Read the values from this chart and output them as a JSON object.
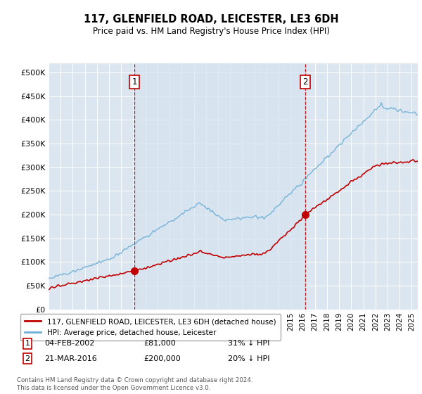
{
  "title": "117, GLENFIELD ROAD, LEICESTER, LE3 6DH",
  "subtitle": "Price paid vs. HM Land Registry's House Price Index (HPI)",
  "xlim_start": 1995.0,
  "xlim_end": 2025.5,
  "ylim": [
    0,
    520000
  ],
  "yticks": [
    0,
    50000,
    100000,
    150000,
    200000,
    250000,
    300000,
    350000,
    400000,
    450000,
    500000
  ],
  "ytick_labels": [
    "£0",
    "£50K",
    "£100K",
    "£150K",
    "£200K",
    "£250K",
    "£300K",
    "£350K",
    "£400K",
    "£450K",
    "£500K"
  ],
  "transaction1_x": 2002.09,
  "transaction1_y": 81000,
  "transaction2_x": 2016.22,
  "transaction2_y": 200000,
  "vline1_x": 2002.09,
  "vline2_x": 2016.22,
  "hpi_color": "#6baed6",
  "price_color": "#c00000",
  "shade_color": "#d6e4f0",
  "legend_label1": "117, GLENFIELD ROAD, LEICESTER, LE3 6DH (detached house)",
  "legend_label2": "HPI: Average price, detached house, Leicester",
  "table_row1": [
    "1",
    "04-FEB-2002",
    "£81,000",
    "31% ↓ HPI"
  ],
  "table_row2": [
    "2",
    "21-MAR-2016",
    "£200,000",
    "20% ↓ HPI"
  ],
  "footnote": "Contains HM Land Registry data © Crown copyright and database right 2024.\nThis data is licensed under the Open Government Licence v3.0.",
  "bg_color": "#ffffff",
  "plot_bg_color": "#dce6f1",
  "grid_color": "#ffffff"
}
